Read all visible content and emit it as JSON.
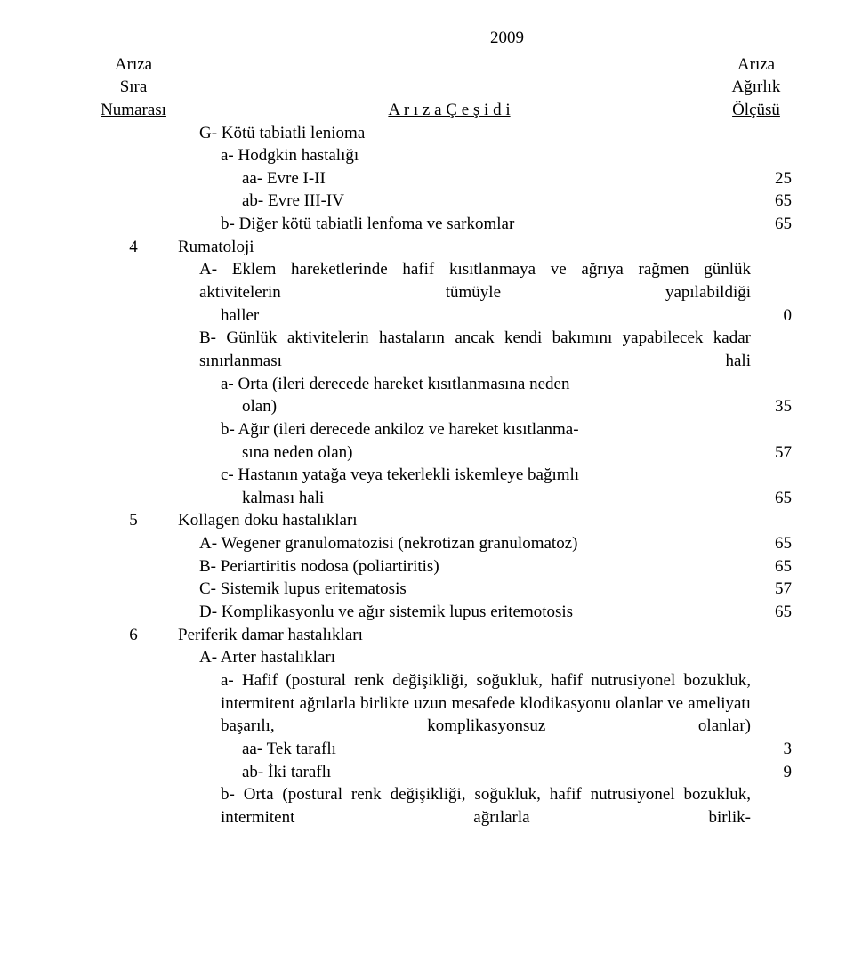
{
  "year": "2009",
  "header": {
    "col1_line1": "Arıza",
    "col1_line2": "Sıra",
    "col1_line3": "Numarası",
    "col2_line3": "A r ı z a   Ç e ş i d i",
    "col3_line1": "Arıza",
    "col3_line2": "Ağırlık",
    "col3_line3": "Ölçüsü"
  },
  "lines": [
    {
      "num": "",
      "ind": "ind2",
      "text": "G-  Kötü tabiatli lenioma",
      "val": ""
    },
    {
      "num": "",
      "ind": "ind3",
      "text": "a-  Hodgkin hastalığı",
      "val": ""
    },
    {
      "num": "",
      "ind": "ind4",
      "text": "aa- Evre I-II",
      "val": "25"
    },
    {
      "num": "",
      "ind": "ind4",
      "text": "ab- Evre III-IV",
      "val": "65"
    },
    {
      "num": "",
      "ind": "ind3",
      "text": "b-  Diğer kötü tabiatli lenfoma ve sarkomlar",
      "val": "65"
    },
    {
      "num": "4",
      "ind": "ind1",
      "text": "Rumatoloji",
      "val": ""
    },
    {
      "num": "",
      "ind": "ind2",
      "text": "A-  Eklem hareketlerinde hafif kısıtlanmaya ve ağrıya rağmen günlük aktivitelerin tümüyle yapılabildiği",
      "val": "",
      "justify": true
    },
    {
      "num": "",
      "ind": "ind3",
      "text": "haller",
      "val": "0"
    },
    {
      "num": "",
      "ind": "ind2",
      "text": "B-  Günlük aktivitelerin hastaların ancak kendi bakımını yapabilecek kadar sınırlanması hali",
      "val": "",
      "justify": true
    },
    {
      "num": "",
      "ind": "ind3",
      "text": "a-  Orta (ileri derecede hareket kısıtlanmasına neden",
      "val": ""
    },
    {
      "num": "",
      "ind": "ind4",
      "text": "olan)",
      "val": "35"
    },
    {
      "num": "",
      "ind": "ind3",
      "text": "b-  Ağır (ileri derecede ankiloz ve hareket kısıtlanma-",
      "val": ""
    },
    {
      "num": "",
      "ind": "ind4",
      "text": "sına neden olan)",
      "val": "57"
    },
    {
      "num": "",
      "ind": "ind3",
      "text": "c-  Hastanın yatağa veya tekerlekli iskemleye bağımlı",
      "val": ""
    },
    {
      "num": "",
      "ind": "ind4",
      "text": "kalması hali",
      "val": "65"
    },
    {
      "num": "5",
      "ind": "ind1",
      "text": "Kollagen doku hastalıkları",
      "val": ""
    },
    {
      "num": "",
      "ind": "ind2",
      "text": "A-  Wegener granulomatozisi (nekrotizan granulomatoz)",
      "val": "65"
    },
    {
      "num": "",
      "ind": "ind2",
      "text": "B-  Periartiritis nodosa (poliartiritis)",
      "val": "65"
    },
    {
      "num": "",
      "ind": "ind2",
      "text": "C-  Sistemik lupus eritematosis",
      "val": "57"
    },
    {
      "num": "",
      "ind": "ind2",
      "text": "D-  Komplikasyonlu ve ağır sistemik lupus eritemotosis",
      "val": "65"
    },
    {
      "num": "6",
      "ind": "ind1",
      "text": "Periferik damar hastalıkları",
      "val": ""
    },
    {
      "num": "",
      "ind": "ind2",
      "text": "A-  Arter hastalıkları",
      "val": ""
    },
    {
      "num": "",
      "ind": "ind3",
      "text": "a-  Hafif (postural renk değişikliği, soğukluk, hafif nutrusiyonel bozukluk, intermitent ağrılarla birlikte uzun mesafede klodikasyonu olanlar ve ameliyatı başarılı, komplikasyonsuz olanlar)",
      "val": "",
      "justify": true
    },
    {
      "num": "",
      "ind": "ind4",
      "text": "aa- Tek taraflı",
      "val": "3"
    },
    {
      "num": "",
      "ind": "ind4",
      "text": "ab- İki taraflı",
      "val": "9"
    },
    {
      "num": "",
      "ind": "ind3",
      "text": "b-  Orta (postural renk değişikliği, soğukluk, hafif nutrusiyonel bozukluk, intermitent ağrılarla birlik-",
      "val": "",
      "justify": true
    }
  ]
}
